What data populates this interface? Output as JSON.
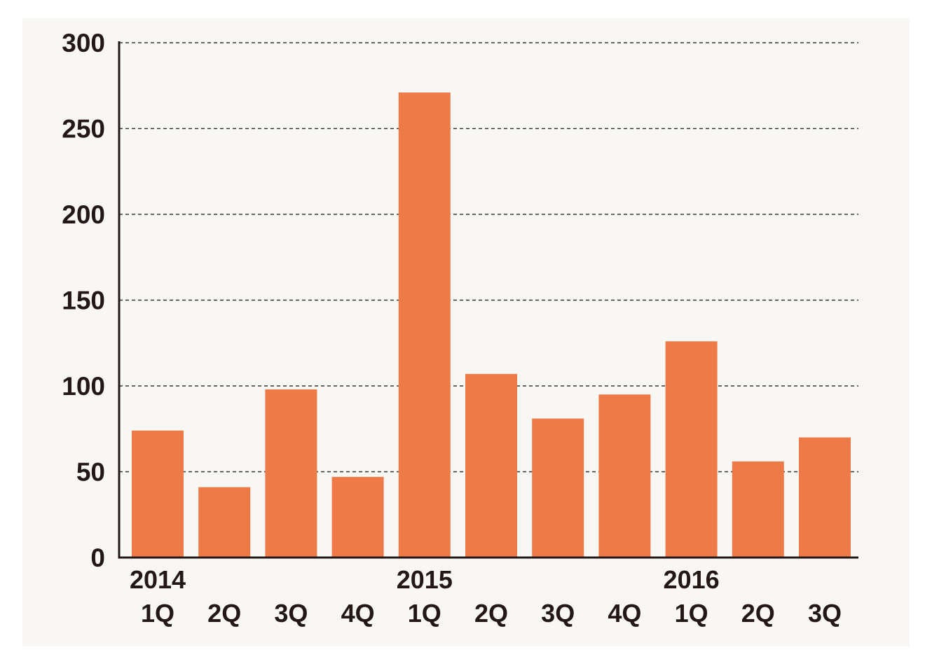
{
  "chart_data": {
    "type": "bar",
    "title": "",
    "xlabel": "",
    "ylabel": "",
    "categories": [
      "1Q",
      "2Q",
      "3Q",
      "4Q",
      "1Q",
      "2Q",
      "3Q",
      "4Q",
      "1Q",
      "2Q",
      "3Q"
    ],
    "year_labels": [
      {
        "label": "2014",
        "index": 0
      },
      {
        "label": "2015",
        "index": 4
      },
      {
        "label": "2016",
        "index": 8
      }
    ],
    "values": [
      74,
      41,
      98,
      47,
      271,
      107,
      81,
      95,
      126,
      56,
      70
    ],
    "ylim": [
      0,
      300
    ],
    "yticks": [
      0,
      50,
      100,
      150,
      200,
      250,
      300
    ],
    "grid": true,
    "legend": "none",
    "bar_color": "#ee7b47"
  }
}
